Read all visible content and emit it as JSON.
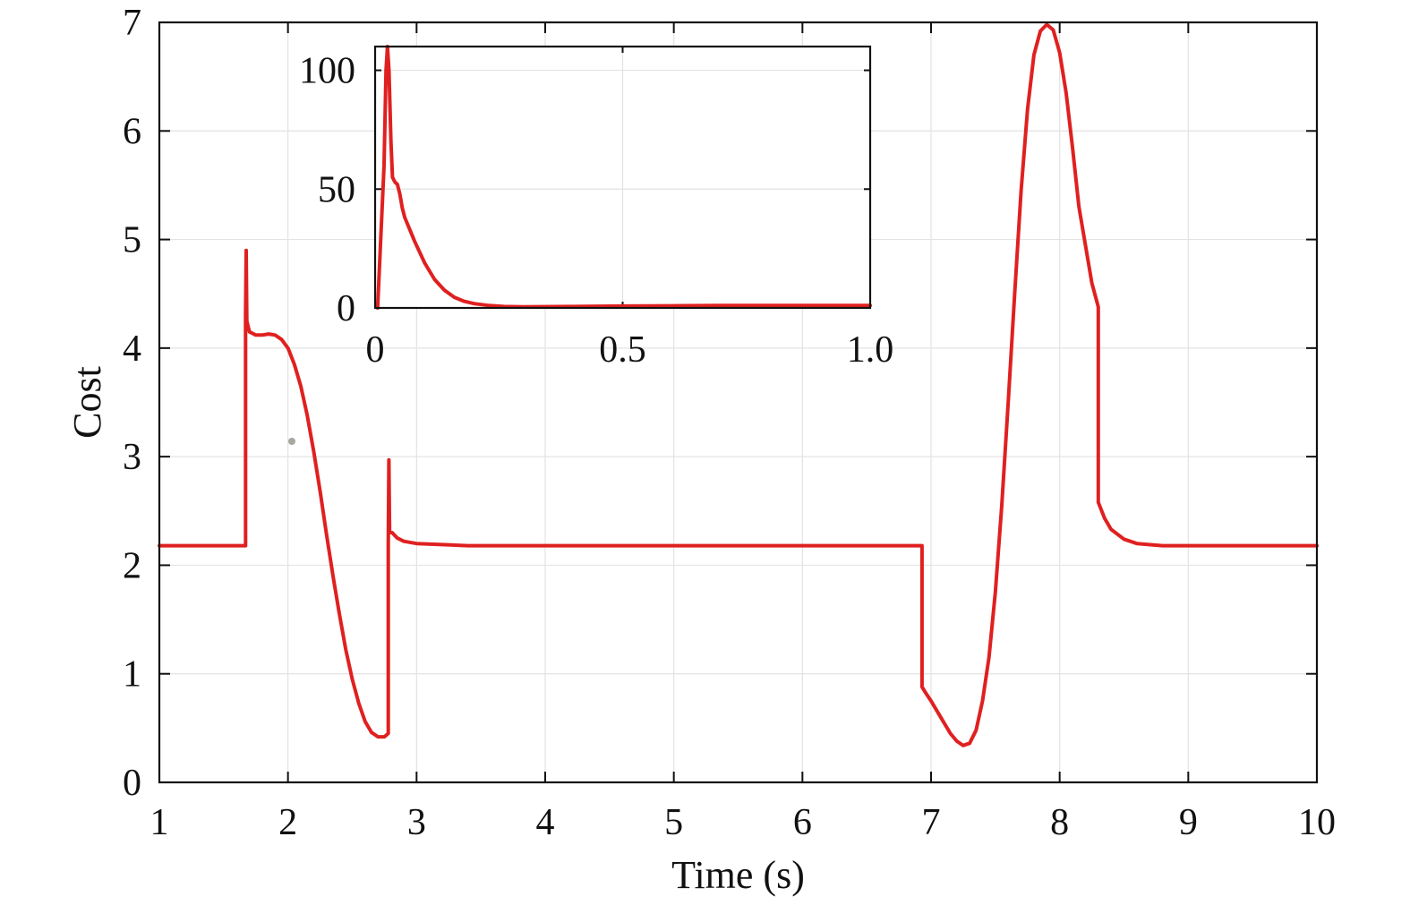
{
  "chart_data": [
    {
      "type": "line",
      "xlabel": "Time (s)",
      "ylabel": "Cost",
      "xlim": [
        1,
        10
      ],
      "ylim": [
        0,
        7
      ],
      "xticks": [
        "1",
        "2",
        "3",
        "4",
        "5",
        "6",
        "7",
        "8",
        "9",
        "10"
      ],
      "yticks": [
        "0",
        "1",
        "2",
        "3",
        "4",
        "5",
        "6",
        "7"
      ],
      "grid": true,
      "series": [
        {
          "color": "#e02020",
          "points": [
            [
              1.0,
              2.18
            ],
            [
              1.67,
              2.18
            ],
            [
              1.67,
              4.3
            ],
            [
              1.675,
              4.9
            ],
            [
              1.68,
              4.25
            ],
            [
              1.7,
              4.15
            ],
            [
              1.75,
              4.12
            ],
            [
              1.8,
              4.12
            ],
            [
              1.85,
              4.13
            ],
            [
              1.9,
              4.12
            ],
            [
              1.95,
              4.08
            ],
            [
              2.0,
              4.0
            ],
            [
              2.05,
              3.85
            ],
            [
              2.1,
              3.65
            ],
            [
              2.15,
              3.38
            ],
            [
              2.2,
              3.05
            ],
            [
              2.25,
              2.68
            ],
            [
              2.3,
              2.28
            ],
            [
              2.35,
              1.9
            ],
            [
              2.4,
              1.55
            ],
            [
              2.45,
              1.22
            ],
            [
              2.5,
              0.95
            ],
            [
              2.55,
              0.73
            ],
            [
              2.6,
              0.56
            ],
            [
              2.65,
              0.46
            ],
            [
              2.7,
              0.42
            ],
            [
              2.75,
              0.42
            ],
            [
              2.78,
              0.45
            ],
            [
              2.78,
              2.2
            ],
            [
              2.785,
              2.97
            ],
            [
              2.79,
              2.3
            ],
            [
              2.81,
              2.3
            ],
            [
              2.85,
              2.25
            ],
            [
              2.9,
              2.22
            ],
            [
              3.0,
              2.2
            ],
            [
              3.2,
              2.19
            ],
            [
              3.4,
              2.18
            ],
            [
              6.93,
              2.18
            ],
            [
              6.93,
              0.88
            ],
            [
              6.96,
              0.82
            ],
            [
              7.0,
              0.75
            ],
            [
              7.05,
              0.65
            ],
            [
              7.1,
              0.55
            ],
            [
              7.15,
              0.45
            ],
            [
              7.2,
              0.38
            ],
            [
              7.25,
              0.34
            ],
            [
              7.3,
              0.36
            ],
            [
              7.35,
              0.48
            ],
            [
              7.4,
              0.75
            ],
            [
              7.45,
              1.15
            ],
            [
              7.5,
              1.75
            ],
            [
              7.55,
              2.55
            ],
            [
              7.6,
              3.5
            ],
            [
              7.65,
              4.5
            ],
            [
              7.7,
              5.45
            ],
            [
              7.75,
              6.2
            ],
            [
              7.8,
              6.7
            ],
            [
              7.85,
              6.92
            ],
            [
              7.9,
              6.98
            ],
            [
              7.95,
              6.93
            ],
            [
              8.0,
              6.72
            ],
            [
              8.05,
              6.35
            ],
            [
              8.1,
              5.85
            ],
            [
              8.15,
              5.3
            ],
            [
              8.2,
              4.95
            ],
            [
              8.25,
              4.6
            ],
            [
              8.3,
              4.38
            ],
            [
              8.3,
              2.58
            ],
            [
              8.35,
              2.43
            ],
            [
              8.4,
              2.33
            ],
            [
              8.5,
              2.24
            ],
            [
              8.6,
              2.2
            ],
            [
              8.8,
              2.18
            ],
            [
              10.0,
              2.18
            ]
          ]
        }
      ]
    },
    {
      "type": "line",
      "xlim": [
        0,
        1.0
      ],
      "ylim": [
        0,
        110
      ],
      "xticks": [
        "0",
        "0.5",
        "1.0"
      ],
      "yticks": [
        "0",
        "50",
        "100"
      ],
      "grid": true,
      "series": [
        {
          "color": "#e02020",
          "points": [
            [
              0.005,
              0
            ],
            [
              0.018,
              60
            ],
            [
              0.022,
              100
            ],
            [
              0.025,
              110
            ],
            [
              0.028,
              100
            ],
            [
              0.032,
              70
            ],
            [
              0.035,
              55
            ],
            [
              0.04,
              53
            ],
            [
              0.045,
              52
            ],
            [
              0.05,
              48
            ],
            [
              0.055,
              42
            ],
            [
              0.06,
              38
            ],
            [
              0.08,
              28
            ],
            [
              0.1,
              19
            ],
            [
              0.12,
              12
            ],
            [
              0.14,
              7.5
            ],
            [
              0.16,
              4.5
            ],
            [
              0.18,
              2.8
            ],
            [
              0.2,
              1.8
            ],
            [
              0.23,
              1.0
            ],
            [
              0.26,
              0.6
            ],
            [
              0.3,
              0.5
            ],
            [
              0.4,
              0.6
            ],
            [
              0.5,
              0.8
            ],
            [
              0.6,
              0.9
            ],
            [
              0.7,
              1.0
            ],
            [
              0.8,
              1.0
            ],
            [
              0.9,
              1.0
            ],
            [
              1.0,
              1.0
            ]
          ]
        }
      ]
    }
  ]
}
